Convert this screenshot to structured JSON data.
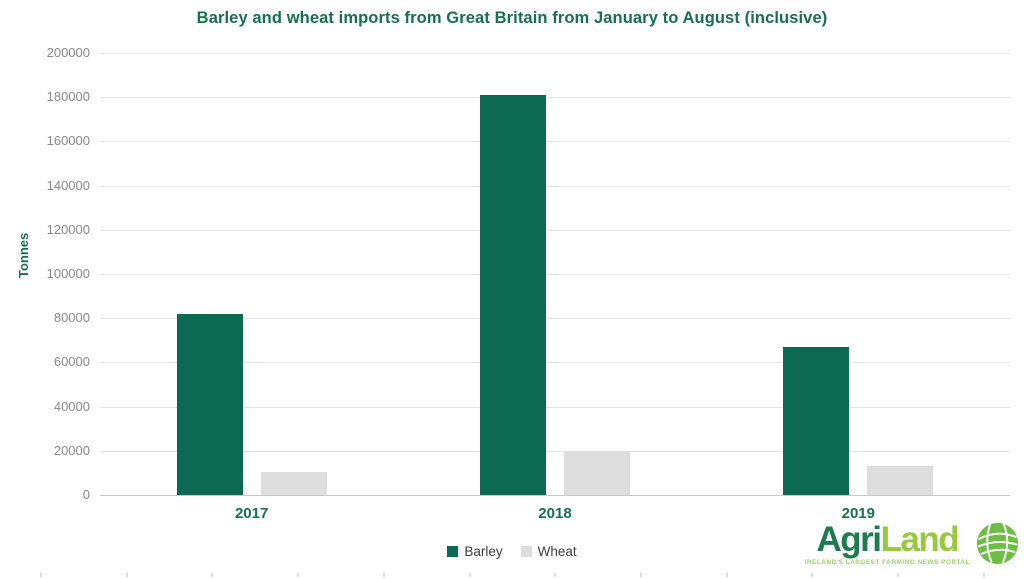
{
  "chart_data": {
    "type": "bar",
    "title": "Barley and wheat imports from Great Britain from January to August (inclusive)",
    "xlabel": "",
    "ylabel": "Tonnes",
    "categories": [
      "2017",
      "2018",
      "2019"
    ],
    "series": [
      {
        "name": "Barley",
        "color": "#0B6A51",
        "values": [
          82000,
          181000,
          67000
        ]
      },
      {
        "name": "Wheat",
        "color": "#DEDEDE",
        "values": [
          10500,
          20000,
          13000
        ]
      }
    ],
    "ylim": [
      0,
      200000
    ],
    "ytick_step": 20000,
    "yticks": [
      "0",
      "20000",
      "40000",
      "60000",
      "80000",
      "100000",
      "120000",
      "140000",
      "160000",
      "180000",
      "200000"
    ],
    "grid": true,
    "legend_position": "bottom-center"
  },
  "branding": {
    "logo_agri": "Agri",
    "logo_land": "Land",
    "tagline": "IRELAND'S LARGEST FARMING NEWS PORTAL",
    "globe_icon": "yarn-globe-icon"
  },
  "colors": {
    "title_green": "#15714B",
    "barley_green": "#0B6A51",
    "wheat_gray": "#DEDEDE",
    "axis_label_gray": "#8A8A8A",
    "gridline": "#E4E4E4",
    "logo_agri_green": "#1E7A4F",
    "logo_land_lime": "#97C93D",
    "globe_green": "#6CBE45"
  }
}
